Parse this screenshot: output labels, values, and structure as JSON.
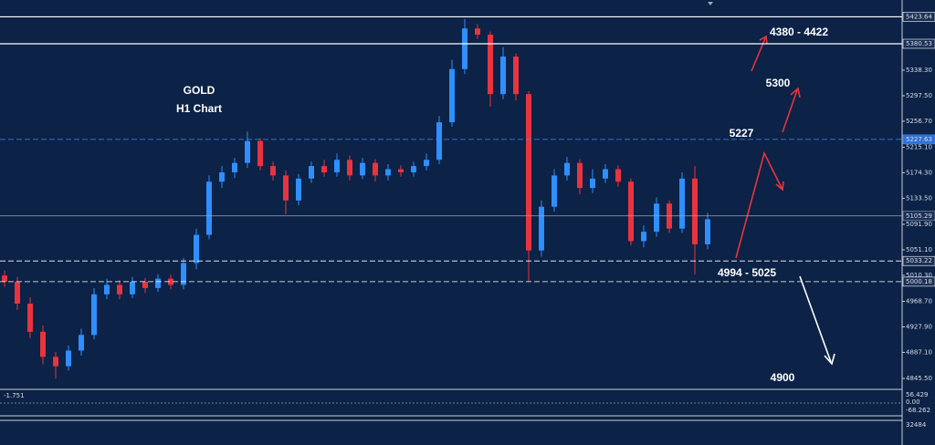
{
  "chart_data": {
    "type": "candlestick",
    "title": "GOLD",
    "subtitle": "H1 Chart",
    "annotations": [
      "4380 - 4422",
      "5300",
      "5227",
      "4994 - 5025",
      "4900"
    ],
    "categories": [
      null,
      null,
      null,
      null,
      null,
      null,
      null,
      null,
      null,
      null,
      null,
      null,
      null,
      null,
      null,
      null,
      null,
      null,
      null,
      null,
      null,
      null,
      null,
      null,
      null,
      null,
      null,
      null,
      null,
      null,
      null,
      null,
      null,
      null,
      null,
      null,
      null,
      null,
      null,
      null,
      null,
      null,
      null,
      null,
      null,
      null,
      null,
      null,
      null,
      null,
      null,
      null,
      null,
      null,
      null,
      null
    ],
    "open": [
      5010,
      5000,
      4965,
      4920,
      4880,
      4865,
      4890,
      4915,
      4980,
      4995,
      4980,
      5000,
      4990,
      5005,
      4995,
      5030,
      5075,
      5160,
      5175,
      5190,
      5225,
      5185,
      5170,
      5130,
      5165,
      5185,
      5175,
      5195,
      5170,
      5190,
      5170,
      5180,
      5175,
      5185,
      5195,
      5255,
      5340,
      5405,
      5395,
      5300,
      5360,
      5300,
      5050,
      5120,
      5170,
      5190,
      5150,
      5165,
      5180,
      5160,
      5065,
      5080,
      5125,
      5085,
      5165,
      5060
    ],
    "high": [
      5018,
      5008,
      4975,
      4930,
      4888,
      4898,
      4925,
      4990,
      5005,
      5003,
      5008,
      5006,
      5012,
      5012,
      5038,
      5085,
      5170,
      5185,
      5198,
      5240,
      5230,
      5192,
      5178,
      5172,
      5192,
      5195,
      5205,
      5202,
      5198,
      5196,
      5188,
      5186,
      5192,
      5205,
      5265,
      5355,
      5420,
      5412,
      5400,
      5375,
      5365,
      5305,
      5130,
      5180,
      5200,
      5196,
      5180,
      5188,
      5186,
      5165,
      5090,
      5135,
      5130,
      5175,
      5185,
      5110
    ],
    "low": [
      4992,
      4955,
      4910,
      4868,
      4845,
      4858,
      4882,
      4908,
      4972,
      4972,
      4974,
      4982,
      4984,
      4988,
      4988,
      5020,
      5068,
      5150,
      5166,
      5182,
      5178,
      5162,
      5108,
      5122,
      5158,
      5168,
      5168,
      5162,
      5164,
      5160,
      5162,
      5168,
      5168,
      5178,
      5188,
      5248,
      5332,
      5388,
      5280,
      5292,
      5290,
      5000,
      5040,
      5112,
      5162,
      5140,
      5142,
      5158,
      5152,
      5058,
      5055,
      5072,
      5078,
      5078,
      5012,
      5052
    ],
    "close": [
      5000,
      4965,
      4920,
      4880,
      4865,
      4890,
      4915,
      4980,
      4995,
      4980,
      5000,
      4990,
      5005,
      4995,
      5030,
      5075,
      5160,
      5175,
      5190,
      5225,
      5185,
      5170,
      5130,
      5165,
      5185,
      5175,
      5195,
      5170,
      5190,
      5170,
      5180,
      5175,
      5185,
      5195,
      5255,
      5340,
      5405,
      5395,
      5300,
      5360,
      5300,
      5050,
      5120,
      5170,
      5190,
      5150,
      5165,
      5180,
      5160,
      5065,
      5080,
      5125,
      5085,
      5165,
      5060,
      5100
    ],
    "up_color": "#2f8fff",
    "down_color": "#e8343f",
    "ylim": [
      4826.5,
      5450.5
    ],
    "yticks": [
      {
        "value": 5338.3,
        "label": "5338.30"
      },
      {
        "value": 5297.5,
        "label": "5297.50"
      },
      {
        "value": 5256.7,
        "label": "5256.70"
      },
      {
        "value": 5215.1,
        "label": "5215.10"
      },
      {
        "value": 5174.3,
        "label": "5174.30"
      },
      {
        "value": 5133.5,
        "label": "5133.50"
      },
      {
        "value": 5091.9,
        "label": "5091.90"
      },
      {
        "value": 5051.1,
        "label": "5051.10"
      },
      {
        "value": 5010.3,
        "label": "5010.30"
      },
      {
        "value": 4968.7,
        "label": "4968.70"
      },
      {
        "value": 4927.9,
        "label": "4927.90"
      },
      {
        "value": 4887.1,
        "label": "4887.10"
      },
      {
        "value": 4845.5,
        "label": "4845.50"
      }
    ],
    "levels": [
      5423.64,
      5380.53,
      5227.63,
      5105.29,
      5033.22,
      5000.18
    ],
    "level_styles": [
      "solid",
      "solid",
      "dashed",
      "solid",
      "dashed",
      "dashed"
    ],
    "level_colors": [
      "#ffffff",
      "#ffffff",
      "#3a8fff",
      "#9aa7bd",
      "#ffffff",
      "#ffffff"
    ],
    "indicator_labels": [
      "-1.751",
      "56.429",
      "0.00",
      "-68.262",
      "32484"
    ]
  }
}
